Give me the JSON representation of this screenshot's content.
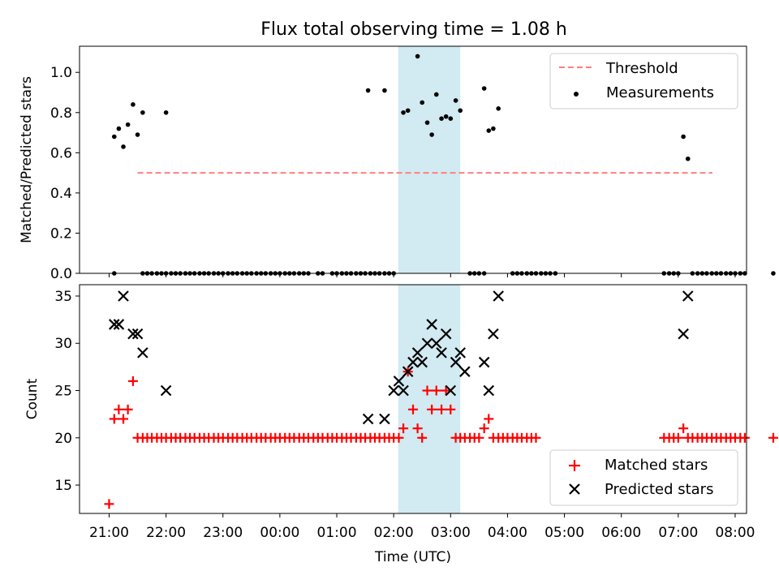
{
  "title": "Flux total observing time = 1.08 h",
  "chart_data": [
    {
      "type": "scatter",
      "panel": "top",
      "title": "Flux total observing time = 1.08 h",
      "ylabel": "Matched/Predicted stars",
      "xlabel": "",
      "x_unit": "hours since 21:00 UTC",
      "xlim": [
        -0.52,
        11.2
      ],
      "ylim": [
        0,
        1.13
      ],
      "yticks": [
        0.0,
        0.2,
        0.4,
        0.6,
        0.8,
        1.0
      ],
      "ytick_labels": [
        "0.0",
        "0.2",
        "0.4",
        "0.6",
        "0.8",
        "1.0"
      ],
      "shaded_interval": [
        5.08,
        6.17
      ],
      "shade_color": "#add8e6",
      "legend": {
        "position": "top-right",
        "entries": [
          "Threshold",
          "Measurements"
        ]
      },
      "series": [
        {
          "name": "Threshold",
          "kind": "line",
          "style": "dashed",
          "color": "#ff7f7f",
          "x": [
            0.5,
            10.6
          ],
          "y": [
            0.5,
            0.5
          ]
        },
        {
          "name": "Measurements",
          "kind": "scatter",
          "marker": "dot",
          "color": "#000000",
          "x": [
            0.09,
            0.17,
            0.25,
            0.33,
            0.42,
            0.5,
            0.59,
            1.0,
            4.55,
            4.84,
            5.17,
            5.25,
            5.42,
            5.5,
            5.59,
            5.67,
            5.75,
            5.84,
            5.92,
            6.0,
            6.09,
            6.17,
            6.59,
            6.67,
            6.75,
            6.84,
            10.09,
            10.17
          ],
          "y": [
            0.68,
            0.72,
            0.63,
            0.74,
            0.84,
            0.69,
            0.8,
            0.8,
            0.91,
            0.91,
            0.8,
            0.81,
            1.08,
            0.85,
            0.75,
            0.69,
            0.89,
            0.77,
            0.78,
            0.77,
            0.86,
            0.81,
            0.92,
            0.71,
            0.72,
            0.82,
            0.68,
            0.57
          ],
          "zero_x": [
            0.09,
            0.59,
            0.67,
            0.75,
            0.84,
            0.92,
            1.0,
            1.09,
            1.17,
            1.25,
            1.34,
            1.42,
            1.5,
            1.59,
            1.67,
            1.75,
            1.84,
            1.92,
            2.0,
            2.09,
            2.17,
            2.25,
            2.34,
            2.42,
            2.5,
            2.59,
            2.67,
            2.75,
            2.84,
            2.92,
            3.0,
            3.09,
            3.17,
            3.25,
            3.34,
            3.42,
            3.5,
            3.67,
            3.75,
            3.92,
            4.0,
            4.09,
            4.17,
            4.25,
            4.34,
            4.42,
            4.5,
            4.59,
            4.67,
            4.75,
            4.84,
            4.92,
            5.0,
            6.34,
            6.42,
            6.5,
            6.59,
            7.09,
            7.17,
            7.25,
            7.34,
            7.42,
            7.5,
            7.59,
            7.67,
            7.75,
            7.84,
            9.75,
            9.84,
            9.92,
            10.0,
            10.25,
            10.34,
            10.42,
            10.5,
            10.59,
            10.67,
            10.75,
            10.84,
            10.92,
            11.0,
            11.09,
            11.17,
            11.67
          ]
        }
      ]
    },
    {
      "type": "scatter",
      "panel": "bottom",
      "title": "",
      "xlabel": "Time (UTC)",
      "ylabel": "Count",
      "x_unit": "hours since 21:00 UTC",
      "xlim": [
        -0.52,
        11.2
      ],
      "ylim": [
        12,
        36.2
      ],
      "xticks": [
        0,
        1,
        2,
        3,
        4,
        5,
        6,
        7,
        8,
        9,
        10,
        11
      ],
      "xtick_labels": [
        "21:00",
        "22:00",
        "23:00",
        "00:00",
        "01:00",
        "02:00",
        "03:00",
        "04:00",
        "05:00",
        "06:00",
        "07:00",
        "08:00"
      ],
      "yticks": [
        15,
        20,
        25,
        30,
        35
      ],
      "ytick_labels": [
        "15",
        "20",
        "25",
        "30",
        "35"
      ],
      "shaded_interval": [
        5.08,
        6.17
      ],
      "shade_color": "#add8e6",
      "legend": {
        "position": "bottom-right",
        "entries": [
          "Matched stars",
          "Predicted stars"
        ]
      },
      "series": [
        {
          "name": "Matched stars",
          "marker": "plus",
          "color": "#ff0000",
          "x": [
            0.0,
            0.09,
            0.17,
            0.25,
            0.33,
            0.42,
            0.5,
            0.59,
            0.67,
            0.75,
            0.84,
            0.92,
            1.0,
            1.09,
            1.17,
            1.25,
            1.34,
            1.42,
            1.5,
            1.59,
            1.67,
            1.75,
            1.84,
            1.92,
            2.0,
            2.09,
            2.17,
            2.25,
            2.34,
            2.42,
            2.5,
            2.59,
            2.67,
            2.75,
            2.84,
            2.92,
            3.0,
            3.09,
            3.17,
            3.25,
            3.34,
            3.42,
            3.5,
            3.59,
            3.67,
            3.75,
            3.84,
            3.92,
            4.0,
            4.09,
            4.17,
            4.25,
            4.34,
            4.42,
            4.5,
            4.59,
            4.67,
            4.75,
            4.84,
            4.92,
            5.0,
            5.09,
            5.17,
            5.25,
            5.34,
            5.42,
            5.5,
            5.59,
            5.67,
            5.75,
            5.84,
            5.92,
            6.0,
            6.09,
            6.17,
            6.25,
            6.34,
            6.42,
            6.5,
            6.59,
            6.67,
            6.75,
            6.84,
            6.92,
            7.0,
            7.09,
            7.17,
            7.25,
            7.34,
            7.42,
            7.5,
            9.75,
            9.84,
            9.92,
            10.0,
            10.09,
            10.17,
            10.25,
            10.34,
            10.42,
            10.5,
            10.59,
            10.67,
            10.75,
            10.84,
            10.92,
            11.0,
            11.09,
            11.17,
            11.67
          ],
          "y": [
            13,
            22,
            23,
            22,
            23,
            26,
            20,
            20,
            20,
            20,
            20,
            20,
            20,
            20,
            20,
            20,
            20,
            20,
            20,
            20,
            20,
            20,
            20,
            20,
            20,
            20,
            20,
            20,
            20,
            20,
            20,
            20,
            20,
            20,
            20,
            20,
            20,
            20,
            20,
            20,
            20,
            20,
            20,
            20,
            20,
            20,
            20,
            20,
            20,
            20,
            20,
            20,
            20,
            20,
            20,
            20,
            20,
            20,
            20,
            20,
            20,
            20,
            21,
            27,
            23,
            21,
            20,
            25,
            23,
            25,
            23,
            25,
            23,
            20,
            20,
            20,
            20,
            20,
            20,
            21,
            22,
            20,
            20,
            20,
            20,
            20,
            20,
            20,
            20,
            20,
            20,
            20,
            20,
            20,
            20,
            21,
            20,
            20,
            20,
            20,
            20,
            20,
            20,
            20,
            20,
            20,
            20,
            20,
            20,
            20
          ]
        },
        {
          "name": "Predicted stars",
          "marker": "x",
          "color": "#000000",
          "x": [
            0.09,
            0.17,
            0.25,
            0.42,
            0.5,
            0.59,
            1.0,
            4.55,
            4.84,
            5.0,
            5.09,
            5.17,
            5.25,
            5.34,
            5.42,
            5.5,
            5.59,
            5.67,
            5.75,
            5.84,
            5.92,
            6.0,
            6.09,
            6.17,
            6.25,
            6.59,
            6.67,
            6.75,
            6.84,
            10.09,
            10.17
          ],
          "y": [
            32,
            32,
            35,
            31,
            31,
            29,
            25,
            22,
            22,
            25,
            26,
            25,
            27,
            28,
            29,
            28,
            30,
            32,
            30,
            29,
            31,
            25,
            28,
            29,
            27,
            28,
            25,
            31,
            35,
            31,
            35
          ]
        }
      ]
    }
  ]
}
